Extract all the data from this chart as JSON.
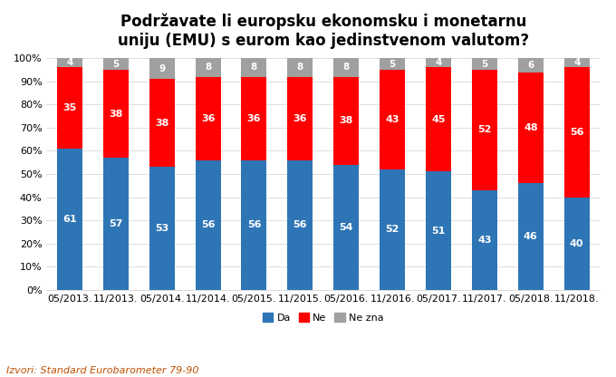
{
  "title": "Podržavate li europsku ekonomsku i monetarnu\nuniju (EMU) s eurom kao jedinstvenom valutom?",
  "categories": [
    "05/2013.",
    "11/2013.",
    "05/2014.",
    "11/2014.",
    "05/2015.",
    "11/2015.",
    "05/2016.",
    "11/2016.",
    "05/2017.",
    "11/2017.",
    "05/2018.",
    "11/2018."
  ],
  "da": [
    61,
    57,
    53,
    56,
    56,
    56,
    54,
    52,
    51,
    43,
    46,
    40
  ],
  "ne": [
    35,
    38,
    38,
    36,
    36,
    36,
    38,
    43,
    45,
    52,
    48,
    56
  ],
  "ne_zna": [
    4,
    5,
    9,
    8,
    8,
    8,
    8,
    5,
    4,
    5,
    6,
    4
  ],
  "color_da": "#2E75B6",
  "color_ne": "#FF0000",
  "color_ne_zna": "#A0A0A0",
  "footer": "Izvori: Standard Eurobarometer 79-90",
  "legend_labels": [
    "Da",
    "Ne",
    "Ne zna"
  ],
  "title_fontsize": 12,
  "tick_fontsize": 8,
  "label_fontsize": 8,
  "footer_fontsize": 8,
  "background_color": "#FFFFFF",
  "figwidth": 6.8,
  "figheight": 4.16,
  "dpi": 100
}
